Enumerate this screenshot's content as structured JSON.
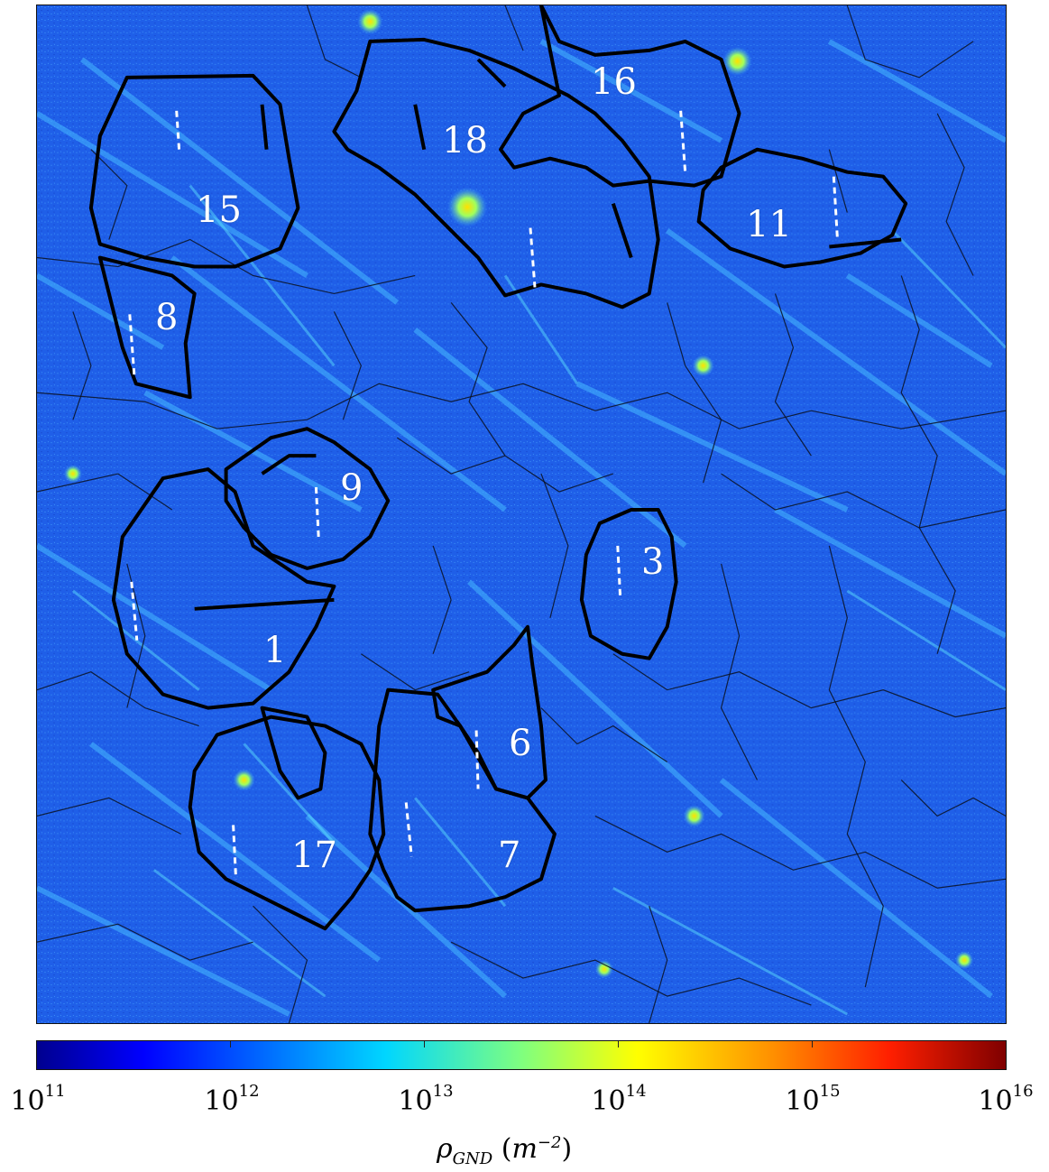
{
  "map": {
    "grain_labels": [
      {
        "id": "15",
        "text": "15"
      },
      {
        "id": "18",
        "text": "18"
      },
      {
        "id": "16",
        "text": "16"
      },
      {
        "id": "11",
        "text": "11"
      },
      {
        "id": "8",
        "text": "8"
      },
      {
        "id": "9",
        "text": "9"
      },
      {
        "id": "3",
        "text": "3"
      },
      {
        "id": "1",
        "text": "1"
      },
      {
        "id": "6",
        "text": "6"
      },
      {
        "id": "17",
        "text": "17"
      },
      {
        "id": "7",
        "text": "7"
      }
    ],
    "colors": {
      "background": "#1f5fe8",
      "texture_light": "#3fb0ff",
      "texture_cyan": "#4fe0ff",
      "hotspot": "#ffe000",
      "boundary_thin": "#0a1020",
      "boundary_thick": "#000000",
      "marker": "#ffffff"
    }
  },
  "colorbar": {
    "scale": "log",
    "colormap": "jet",
    "ticks": [
      {
        "base": "10",
        "exp": "11"
      },
      {
        "base": "10",
        "exp": "12"
      },
      {
        "base": "10",
        "exp": "13"
      },
      {
        "base": "10",
        "exp": "14"
      },
      {
        "base": "10",
        "exp": "15"
      },
      {
        "base": "10",
        "exp": "16"
      }
    ],
    "title": {
      "symbol": "ρ",
      "subscript": "GND",
      "unit_open": "(",
      "unit": "m",
      "unit_exp": "−2",
      "unit_close": ")"
    }
  }
}
